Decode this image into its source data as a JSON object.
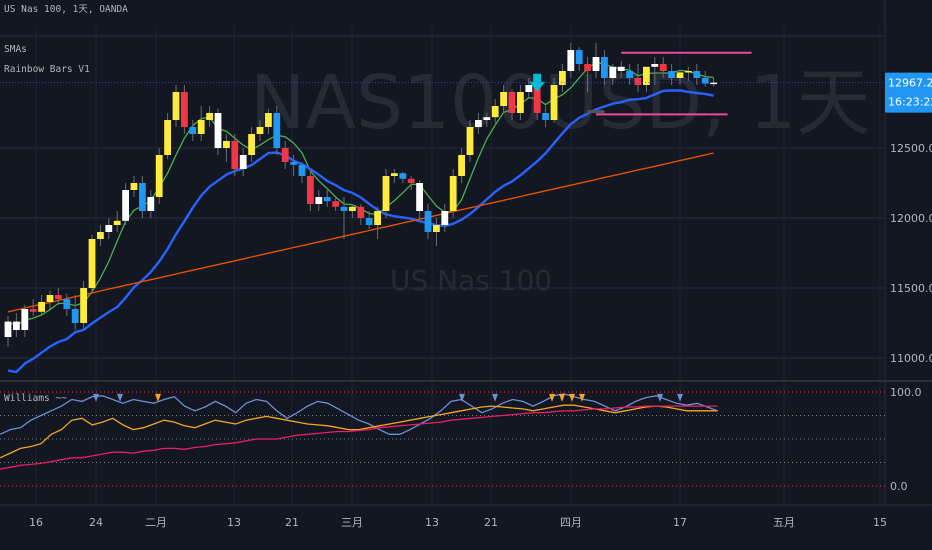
{
  "legend": {
    "symbol": "US Nas 100, 1天, OANDA",
    "ma": "SMAs",
    "bars": "Rainbow Bars V1",
    "osc": "Williams ~~"
  },
  "watermark": {
    "ticker": "NAS100USD, 1天",
    "name": "US Nas 100"
  },
  "price_labels": {
    "current": "12967.2",
    "countdown": "16:23:22"
  },
  "colors": {
    "background": "#131722",
    "bull_yellow": "#ffeb3b",
    "bull_white": "#ffffff",
    "bear_red": "#f23645",
    "bear_blue": "#2196f3",
    "fast_ma": "#4caf50",
    "mid_ma": "#2962ff",
    "slow_ma": "#e65100",
    "current_price_box": "#2196f3",
    "osc_blue": "#6b8fd6",
    "osc_orange": "#f5a623",
    "osc_magenta": "#e91e63",
    "level_line": "#f23645",
    "support_line": "#e84d9c",
    "arrow_cyan": "#00bcd4"
  },
  "chart_data": [
    {
      "type": "candlestick",
      "yticks": [
        "11000.0",
        "11500.0",
        "12000.0",
        "12500.0"
      ],
      "ylim": [
        10900,
        13300
      ],
      "xticks": [
        "16",
        "24",
        "二月",
        "13",
        "21",
        "三月",
        "13",
        "21",
        "四月",
        "17",
        "五月",
        "15"
      ],
      "current_price": 12967.2,
      "candles_ohlc": [
        [
          11150,
          11300,
          11080,
          11260
        ],
        [
          11260,
          11320,
          11150,
          11200
        ],
        [
          11200,
          11380,
          11150,
          11350
        ],
        [
          11350,
          11420,
          11300,
          11330
        ],
        [
          11330,
          11450,
          11300,
          11400
        ],
        [
          11400,
          11480,
          11350,
          11450
        ],
        [
          11450,
          11500,
          11380,
          11420
        ],
        [
          11420,
          11460,
          11300,
          11350
        ],
        [
          11350,
          11450,
          11200,
          11250
        ],
        [
          11250,
          11550,
          11200,
          11500
        ],
        [
          11500,
          11880,
          11480,
          11850
        ],
        [
          11850,
          11950,
          11800,
          11900
        ],
        [
          11900,
          12000,
          11850,
          11950
        ],
        [
          11950,
          12050,
          11900,
          11980
        ],
        [
          11980,
          12250,
          11950,
          12200
        ],
        [
          12200,
          12300,
          12150,
          12250
        ],
        [
          12250,
          12300,
          12000,
          12050
        ],
        [
          12050,
          12200,
          12000,
          12150
        ],
        [
          12150,
          12500,
          12100,
          12450
        ],
        [
          12450,
          12750,
          12420,
          12700
        ],
        [
          12700,
          12950,
          12650,
          12900
        ],
        [
          12900,
          12950,
          12600,
          12650
        ],
        [
          12650,
          12700,
          12550,
          12600
        ],
        [
          12600,
          12800,
          12550,
          12700
        ],
        [
          12700,
          12800,
          12650,
          12750
        ],
        [
          12750,
          12780,
          12450,
          12500
        ],
        [
          12500,
          12600,
          12400,
          12550
        ],
        [
          12550,
          12600,
          12300,
          12350
        ],
        [
          12350,
          12500,
          12300,
          12450
        ],
        [
          12450,
          12650,
          12400,
          12600
        ],
        [
          12600,
          12700,
          12550,
          12650
        ],
        [
          12650,
          12780,
          12600,
          12750
        ],
        [
          12750,
          12800,
          12450,
          12500
        ],
        [
          12500,
          12550,
          12350,
          12400
        ],
        [
          12400,
          12450,
          12300,
          12380
        ],
        [
          12380,
          12400,
          12250,
          12300
        ],
        [
          12300,
          12350,
          12050,
          12100
        ],
        [
          12100,
          12200,
          12050,
          12150
        ],
        [
          12150,
          12200,
          12080,
          12120
        ],
        [
          12120,
          12150,
          12050,
          12080
        ],
        [
          12080,
          12150,
          11850,
          12050
        ],
        [
          12050,
          12100,
          12000,
          12080
        ],
        [
          12080,
          12100,
          11950,
          12000
        ],
        [
          12000,
          12050,
          11920,
          11950
        ],
        [
          11950,
          12080,
          11850,
          12050
        ],
        [
          12050,
          12350,
          12000,
          12300
        ],
        [
          12300,
          12350,
          12250,
          12320
        ],
        [
          12320,
          12330,
          12250,
          12280
        ],
        [
          12280,
          12300,
          12200,
          12250
        ],
        [
          12250,
          12270,
          12000,
          12050
        ],
        [
          12050,
          12100,
          11850,
          11900
        ],
        [
          11900,
          12000,
          11800,
          11950
        ],
        [
          11950,
          12100,
          11900,
          12050
        ],
        [
          12050,
          12350,
          12000,
          12300
        ],
        [
          12300,
          12500,
          12250,
          12450
        ],
        [
          12450,
          12700,
          12400,
          12650
        ],
        [
          12650,
          12750,
          12600,
          12700
        ],
        [
          12700,
          12750,
          12650,
          12720
        ],
        [
          12720,
          12850,
          12680,
          12800
        ],
        [
          12800,
          12950,
          12750,
          12900
        ],
        [
          12900,
          12920,
          12700,
          12750
        ],
        [
          12750,
          12950,
          12700,
          12900
        ],
        [
          12900,
          13000,
          12850,
          12950
        ],
        [
          12950,
          13000,
          12700,
          12750
        ],
        [
          12750,
          12800,
          12650,
          12700
        ],
        [
          12700,
          13000,
          12680,
          12950
        ],
        [
          12950,
          13100,
          12900,
          13050
        ],
        [
          13050,
          13250,
          13000,
          13200
        ],
        [
          13200,
          13220,
          13050,
          13100
        ],
        [
          13100,
          13150,
          12900,
          13050
        ],
        [
          13050,
          13250,
          13000,
          13150
        ],
        [
          13150,
          13200,
          12950,
          13000
        ],
        [
          13000,
          13100,
          12950,
          13080
        ],
        [
          13080,
          13120,
          13000,
          13050
        ],
        [
          13050,
          13100,
          12950,
          13000
        ],
        [
          13000,
          13100,
          12900,
          12950
        ],
        [
          12950,
          13050,
          12900,
          13080
        ],
        [
          13080,
          13150,
          12950,
          13100
        ],
        [
          13100,
          13150,
          13000,
          13050
        ],
        [
          13050,
          13100,
          12950,
          13000
        ],
        [
          13000,
          13060,
          12950,
          13040
        ],
        [
          13040,
          13080,
          12980,
          13050
        ],
        [
          13050,
          13100,
          12950,
          13000
        ],
        [
          13000,
          13050,
          12940,
          12960
        ],
        [
          12960,
          13000,
          12940,
          12967
        ]
      ]
    },
    {
      "type": "line",
      "yticks": [
        "0.0",
        "100.0"
      ],
      "ylim": [
        0,
        100
      ],
      "series": [
        {
          "values": [
            55,
            60,
            62,
            70,
            75,
            80,
            85,
            92,
            90,
            95,
            96,
            92,
            88,
            92,
            90,
            88,
            92,
            95,
            85,
            80,
            84,
            90,
            85,
            78,
            88,
            92,
            90,
            80,
            72,
            78,
            85,
            90,
            88,
            82,
            76,
            70,
            66,
            60,
            55,
            55,
            60,
            66,
            72,
            80,
            90,
            92,
            85,
            78,
            82,
            88,
            92,
            90,
            85,
            90,
            96,
            98,
            95,
            92,
            90,
            85,
            80,
            84,
            90,
            94,
            96,
            92,
            88,
            86,
            88,
            84,
            80
          ]
        },
        {
          "values": [
            30,
            35,
            40,
            42,
            45,
            55,
            60,
            70,
            72,
            65,
            68,
            72,
            65,
            60,
            62,
            66,
            70,
            68,
            64,
            62,
            66,
            70,
            68,
            66,
            70,
            72,
            74,
            72,
            70,
            68,
            66,
            65,
            64,
            62,
            60,
            60,
            62,
            64,
            66,
            68,
            70,
            72,
            74,
            76,
            78,
            80,
            82,
            84,
            85,
            84,
            83,
            82,
            80,
            82,
            84,
            86,
            86,
            84,
            82,
            80,
            78,
            80,
            82,
            84,
            85,
            84,
            82,
            80,
            80,
            80,
            80
          ]
        },
        {
          "values": [
            18,
            20,
            22,
            23,
            24,
            26,
            28,
            30,
            30,
            32,
            34,
            36,
            36,
            35,
            37,
            38,
            40,
            40,
            39,
            41,
            42,
            44,
            45,
            46,
            48,
            50,
            50,
            50,
            52,
            54,
            55,
            56,
            57,
            58,
            58,
            59,
            60,
            62,
            63,
            64,
            65,
            66,
            67,
            68,
            70,
            71,
            72,
            73,
            74,
            75,
            76,
            77,
            78,
            78,
            79,
            80,
            80,
            81,
            82,
            82,
            83,
            84,
            84,
            85,
            85,
            85,
            85,
            85,
            85,
            85,
            85
          ]
        }
      ]
    }
  ]
}
